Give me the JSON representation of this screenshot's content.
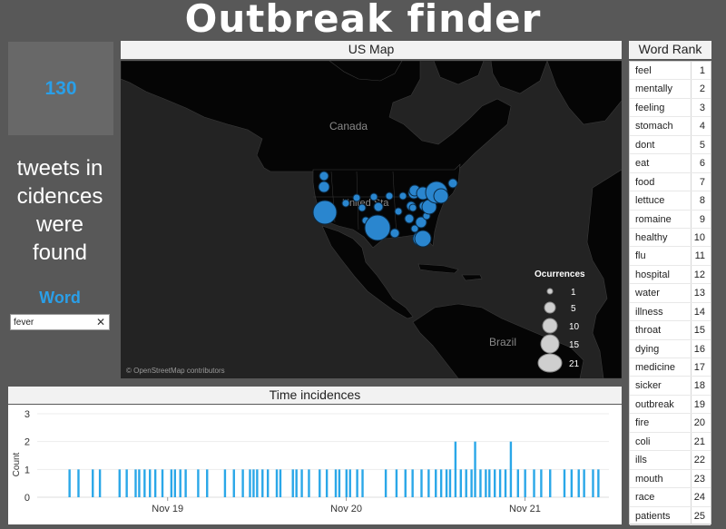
{
  "app": {
    "title": "Outbreak finder"
  },
  "summary": {
    "count": "130",
    "text_lines": [
      "tweets in",
      "cidences",
      "were",
      "found"
    ]
  },
  "filter": {
    "label": "Word",
    "value": "fever",
    "clear_icon": "close-icon"
  },
  "map": {
    "header": "US Map",
    "labels": {
      "canada": "Canada",
      "us": "United Sta",
      "brazil": "Brazil"
    },
    "credit": "© OpenStreetMap contributors",
    "legend": {
      "title": "Ocurrences",
      "values": [
        "1",
        "5",
        "10",
        "15",
        "21"
      ]
    },
    "colors": {
      "water": "#232323",
      "land": "#050505",
      "bubble": "#2a86cf",
      "legend_bubble": "#cfcfcf"
    }
  },
  "word_rank": {
    "header": "Word Rank",
    "rows": [
      {
        "word": "feel",
        "rank": "1"
      },
      {
        "word": "mentally",
        "rank": "2"
      },
      {
        "word": "feeling",
        "rank": "3"
      },
      {
        "word": "stomach",
        "rank": "4"
      },
      {
        "word": "dont",
        "rank": "5"
      },
      {
        "word": "eat",
        "rank": "6"
      },
      {
        "word": "food",
        "rank": "7"
      },
      {
        "word": "lettuce",
        "rank": "8"
      },
      {
        "word": "romaine",
        "rank": "9"
      },
      {
        "word": "healthy",
        "rank": "10"
      },
      {
        "word": "flu",
        "rank": "11"
      },
      {
        "word": "hospital",
        "rank": "12"
      },
      {
        "word": "water",
        "rank": "13"
      },
      {
        "word": "illness",
        "rank": "14"
      },
      {
        "word": "throat",
        "rank": "15"
      },
      {
        "word": "dying",
        "rank": "16"
      },
      {
        "word": "medicine",
        "rank": "17"
      },
      {
        "word": "sicker",
        "rank": "18"
      },
      {
        "word": "outbreak",
        "rank": "19"
      },
      {
        "word": "fire",
        "rank": "20"
      },
      {
        "word": "coli",
        "rank": "21"
      },
      {
        "word": "ills",
        "rank": "22"
      },
      {
        "word": "mouth",
        "rank": "23"
      },
      {
        "word": "race",
        "rank": "24"
      },
      {
        "word": "patients",
        "rank": "25"
      }
    ]
  },
  "chart_data": {
    "type": "bar",
    "title": "Time incidences",
    "xlabel": "",
    "ylabel": "Count",
    "ylim": [
      0,
      3
    ],
    "yticks": [
      "0",
      "1",
      "2",
      "3"
    ],
    "xticks": [
      {
        "label": "Nov 19",
        "day": 1.0
      },
      {
        "label": "Nov 20",
        "day": 2.0
      },
      {
        "label": "Nov 21",
        "day": 3.0
      }
    ],
    "xlim_day": [
      0.27,
      3.47
    ],
    "color": "#2aa7e8",
    "series": [
      {
        "x_day": [
          0.45,
          0.5,
          0.58,
          0.62,
          0.73,
          0.77,
          0.82,
          0.84,
          0.87,
          0.9,
          0.93,
          0.97,
          1.02,
          1.04,
          1.07,
          1.1,
          1.17,
          1.22,
          1.32,
          1.37,
          1.42,
          1.46,
          1.48,
          1.5,
          1.53,
          1.56,
          1.61,
          1.63,
          1.7,
          1.72,
          1.75,
          1.79,
          1.85,
          1.89,
          1.94,
          1.96,
          2.0,
          2.02,
          2.06,
          2.09,
          2.22,
          2.28,
          2.33,
          2.37,
          2.42,
          2.46,
          2.5,
          2.53,
          2.56,
          2.58,
          2.61,
          2.64,
          2.67,
          2.7,
          2.72,
          2.75,
          2.78,
          2.8,
          2.83,
          2.86,
          2.89,
          2.92,
          2.96,
          3.0,
          3.05,
          3.09,
          3.14,
          3.22,
          3.26,
          3.3,
          3.33,
          3.38,
          3.41
        ],
        "values": [
          1,
          1,
          1,
          1,
          1,
          1,
          1,
          1,
          1,
          1,
          1,
          1,
          1,
          1,
          1,
          1,
          1,
          1,
          1,
          1,
          1,
          1,
          1,
          1,
          1,
          1,
          1,
          1,
          1,
          1,
          1,
          1,
          1,
          1,
          1,
          1,
          1,
          1,
          1,
          1,
          1,
          1,
          1,
          1,
          1,
          1,
          1,
          1,
          1,
          1,
          2,
          1,
          1,
          1,
          2,
          1,
          1,
          1,
          1,
          1,
          1,
          2,
          1,
          1,
          1,
          1,
          1,
          1,
          1,
          1,
          1,
          1,
          1
        ]
      }
    ]
  }
}
